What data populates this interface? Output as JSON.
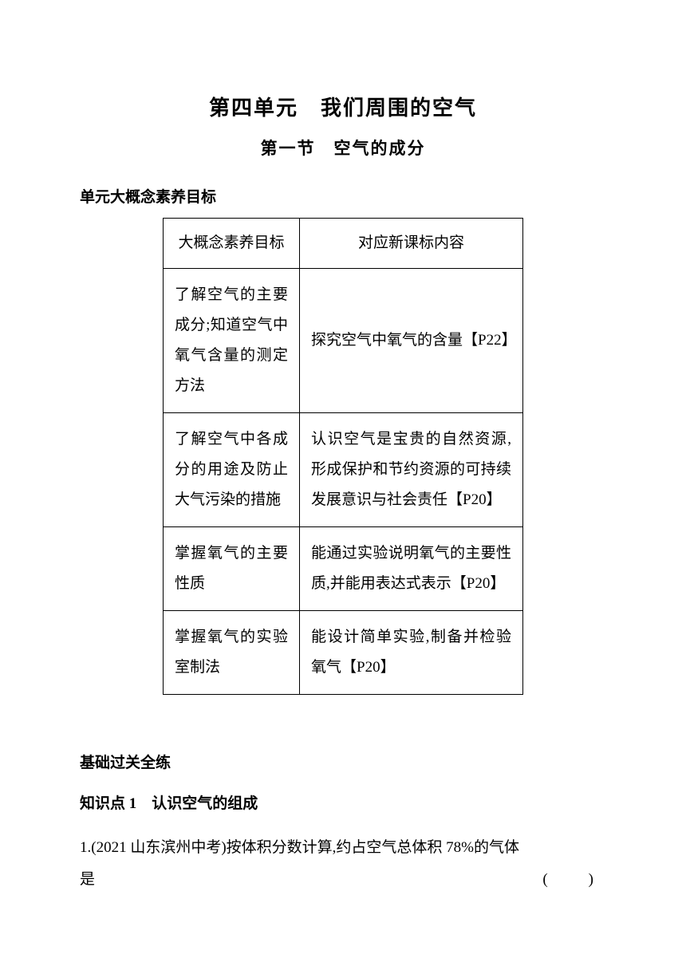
{
  "title_main": "第四单元　我们周围的空气",
  "title_sub": "第一节　空气的成分",
  "section_heading_1": "单元大概念素养目标",
  "table": {
    "header": {
      "col1": "大概念素养目标",
      "col2": "对应新课标内容"
    },
    "rows": [
      {
        "col1": "了解空气的主要成分;知道空气中氧气含量的测定方法",
        "col2": "探究空气中氧气的含量【P22】"
      },
      {
        "col1": "了解空气中各成分的用途及防止大气污染的措施",
        "col2": "认识空气是宝贵的自然资源,形成保护和节约资源的可持续发展意识与社会责任【P20】"
      },
      {
        "col1": "掌握氧气的主要性质",
        "col2": "能通过实验说明氧气的主要性质,并能用表达式表示【P20】"
      },
      {
        "col1": "掌握氧气的实验室制法",
        "col2": "能设计简单实验,制备并检验氧气【P20】"
      }
    ]
  },
  "section_heading_2": "基础过关全练",
  "knowledge_point": "知识点 1　认识空气的组成",
  "question": {
    "line1": "1.(2021 山东滨州中考)按体积分数计算,约占空气总体积 78%的气体",
    "line2_left": "是",
    "line2_right": "(　)"
  }
}
